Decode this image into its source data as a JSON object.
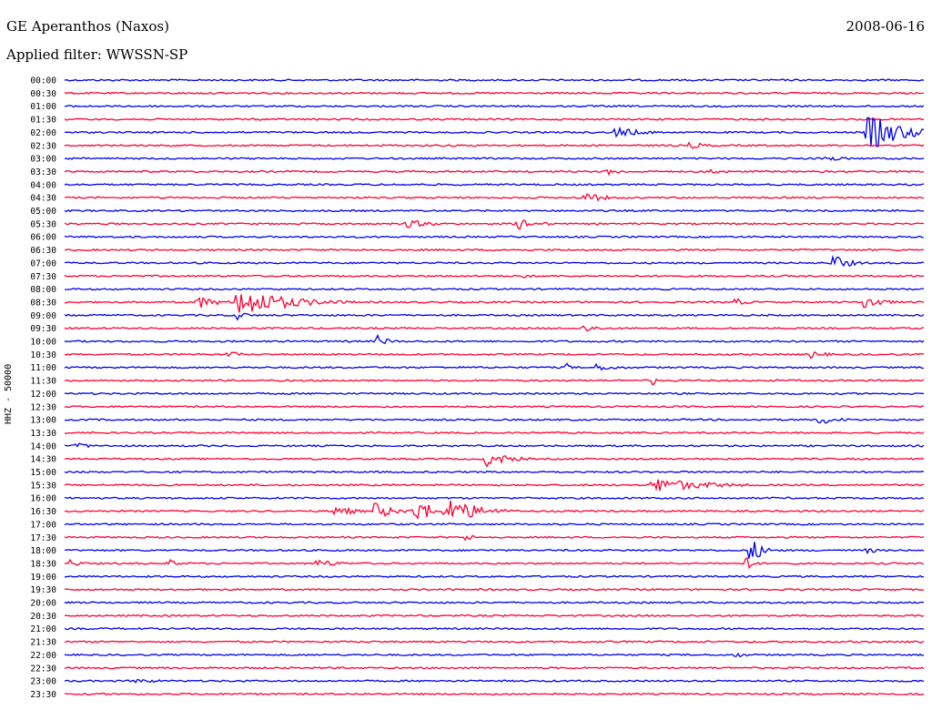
{
  "header": {
    "station": "GE Aperanthos (Naxos)",
    "date": "2008-06-16",
    "filter": "Applied filter: WWSSN-SP"
  },
  "chart_data": {
    "type": "line",
    "title": "GE Aperanthos (Naxos)",
    "subtitle": "Applied filter: WWSSN-SP",
    "date": "2008-06-16",
    "ylabel": "HHZ - 50000",
    "xlabel": "",
    "colors": [
      "#0000ee",
      "#ff0033"
    ],
    "rows": [
      "00:00",
      "00:30",
      "01:00",
      "01:30",
      "02:00",
      "02:30",
      "03:00",
      "03:30",
      "04:00",
      "04:30",
      "05:00",
      "05:30",
      "06:00",
      "06:30",
      "07:00",
      "07:30",
      "08:00",
      "08:30",
      "09:00",
      "09:30",
      "10:00",
      "10:30",
      "11:00",
      "11:30",
      "12:00",
      "12:30",
      "13:00",
      "13:30",
      "14:00",
      "14:30",
      "15:00",
      "15:30",
      "16:00",
      "16:30",
      "17:00",
      "17:30",
      "18:00",
      "18:30",
      "19:00",
      "19:30",
      "20:00",
      "20:30",
      "21:00",
      "21:30",
      "22:00",
      "22:30",
      "23:00",
      "23:30"
    ],
    "x_range_minutes": [
      0,
      30
    ],
    "events": [
      {
        "row": 4,
        "minute": 19.2,
        "amp": 6,
        "dur": 1.5
      },
      {
        "row": 4,
        "minute": 28.0,
        "amp": 22,
        "dur": 1.8
      },
      {
        "row": 5,
        "minute": 21.8,
        "amp": 4,
        "dur": 1.0
      },
      {
        "row": 6,
        "minute": 26.4,
        "amp": 4,
        "dur": 1.2
      },
      {
        "row": 7,
        "minute": 18.9,
        "amp": 4,
        "dur": 0.8
      },
      {
        "row": 7,
        "minute": 22.5,
        "amp": 4,
        "dur": 0.8
      },
      {
        "row": 9,
        "minute": 18.1,
        "amp": 6,
        "dur": 1.2
      },
      {
        "row": 11,
        "minute": 11.9,
        "amp": 5,
        "dur": 1.5
      },
      {
        "row": 11,
        "minute": 15.8,
        "amp": 7,
        "dur": 1.0
      },
      {
        "row": 14,
        "minute": 26.8,
        "amp": 10,
        "dur": 0.8
      },
      {
        "row": 15,
        "minute": 16.0,
        "amp": 5,
        "dur": 0.3
      },
      {
        "row": 17,
        "minute": 4.6,
        "amp": 8,
        "dur": 1.0
      },
      {
        "row": 17,
        "minute": 6.0,
        "amp": 18,
        "dur": 2.5
      },
      {
        "row": 17,
        "minute": 23.4,
        "amp": 5,
        "dur": 0.6
      },
      {
        "row": 17,
        "minute": 27.9,
        "amp": 10,
        "dur": 0.8
      },
      {
        "row": 18,
        "minute": 6.0,
        "amp": 6,
        "dur": 0.5
      },
      {
        "row": 19,
        "minute": 18.1,
        "amp": 5,
        "dur": 0.8
      },
      {
        "row": 20,
        "minute": 10.9,
        "amp": 7,
        "dur": 0.6
      },
      {
        "row": 21,
        "minute": 5.7,
        "amp": 4,
        "dur": 0.8
      },
      {
        "row": 21,
        "minute": 26.0,
        "amp": 5,
        "dur": 0.8
      },
      {
        "row": 22,
        "minute": 17.5,
        "amp": 6,
        "dur": 0.2
      },
      {
        "row": 22,
        "minute": 18.5,
        "amp": 4,
        "dur": 1.4
      },
      {
        "row": 23,
        "minute": 20.5,
        "amp": 6,
        "dur": 0.2
      },
      {
        "row": 26,
        "minute": 26.3,
        "amp": 6,
        "dur": 1.0
      },
      {
        "row": 28,
        "minute": 0.4,
        "amp": 4,
        "dur": 0.8
      },
      {
        "row": 29,
        "minute": 14.7,
        "amp": 9,
        "dur": 1.2
      },
      {
        "row": 31,
        "minute": 20.5,
        "amp": 9,
        "dur": 2.8
      },
      {
        "row": 33,
        "minute": 9.4,
        "amp": 7,
        "dur": 1.0
      },
      {
        "row": 33,
        "minute": 10.8,
        "amp": 10,
        "dur": 1.0
      },
      {
        "row": 33,
        "minute": 12.2,
        "amp": 14,
        "dur": 1.2
      },
      {
        "row": 33,
        "minute": 13.4,
        "amp": 16,
        "dur": 1.5
      },
      {
        "row": 35,
        "minute": 13.9,
        "amp": 4,
        "dur": 0.8
      },
      {
        "row": 36,
        "minute": 23.9,
        "amp": 16,
        "dur": 0.6
      },
      {
        "row": 36,
        "minute": 28.0,
        "amp": 5,
        "dur": 0.4
      },
      {
        "row": 37,
        "minute": 0.2,
        "amp": 5,
        "dur": 0.5
      },
      {
        "row": 37,
        "minute": 3.6,
        "amp": 5,
        "dur": 0.6
      },
      {
        "row": 37,
        "minute": 8.8,
        "amp": 5,
        "dur": 1.2
      },
      {
        "row": 37,
        "minute": 23.8,
        "amp": 12,
        "dur": 0.3
      },
      {
        "row": 44,
        "minute": 23.4,
        "amp": 3,
        "dur": 0.8
      },
      {
        "row": 46,
        "minute": 2.4,
        "amp": 3,
        "dur": 1.5
      }
    ]
  }
}
